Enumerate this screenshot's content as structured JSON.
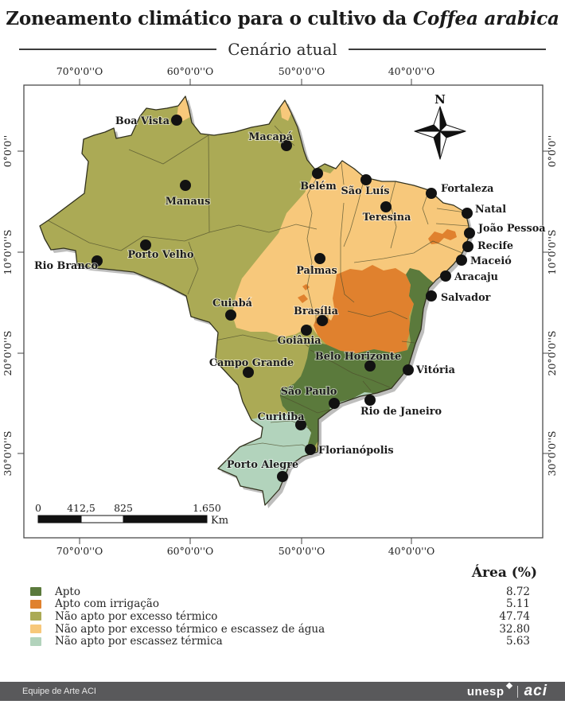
{
  "title": {
    "prefix": "Zoneamento climático para o cultivo da ",
    "species": "Coffea arabica"
  },
  "subtitle": "Cenário atual",
  "map": {
    "compass_n": "N",
    "colors": {
      "apto": "#5b7a3c",
      "apto_irrigacao": "#e0812e",
      "nao_apto_termico": "#abaa55",
      "nao_apto_termico_agua": "#f7c87b",
      "nao_apto_escassez_termica": "#b2d3bc"
    },
    "axis": {
      "top": [
        "70°0'0''O",
        "60°0'0''O",
        "50°0'0''O",
        "40°0'0''O"
      ],
      "bottom": [
        "70°0'0''O",
        "60°0'0''O",
        "50°0'0''O",
        "40°0'0''O"
      ],
      "left": [
        "0°0'0''",
        "10°0'0''S",
        "20°0'0''S",
        "30°0'0''S"
      ],
      "right": [
        "0°0'0''",
        "10°0'0''S",
        "20°0'0''S",
        "30°0'0''S"
      ]
    },
    "scalebar": {
      "ticks": [
        "0",
        "412,5",
        "825",
        "1.650"
      ],
      "unit": "Km"
    },
    "cities": [
      {
        "name": "Boa Vista",
        "dot": [
          222,
          151
        ],
        "label": [
          213,
          156
        ],
        "anchor": "end"
      },
      {
        "name": "Macapá",
        "dot": [
          360,
          183
        ],
        "label": [
          368,
          176
        ],
        "anchor": "end"
      },
      {
        "name": "Manaus",
        "dot": [
          233,
          233
        ],
        "label": [
          236,
          257
        ],
        "anchor": "middle"
      },
      {
        "name": "Belém",
        "dot": [
          399,
          218
        ],
        "label": [
          400,
          238
        ],
        "anchor": "middle"
      },
      {
        "name": "São Luís",
        "dot": [
          460,
          226
        ],
        "label": [
          459,
          244
        ],
        "anchor": "middle"
      },
      {
        "name": "Fortaleza",
        "dot": [
          542,
          243
        ],
        "label": [
          554,
          241
        ],
        "anchor": "start"
      },
      {
        "name": "Teresina",
        "dot": [
          485,
          260
        ],
        "label": [
          486,
          277
        ],
        "anchor": "middle"
      },
      {
        "name": "Natal",
        "dot": [
          587,
          268
        ],
        "label": [
          597,
          267
        ],
        "anchor": "start"
      },
      {
        "name": "João Pessoa",
        "dot": [
          590,
          293
        ],
        "label": [
          601,
          291
        ],
        "anchor": "start"
      },
      {
        "name": "Recife",
        "dot": [
          588,
          310
        ],
        "label": [
          600,
          313
        ],
        "anchor": "start"
      },
      {
        "name": "Maceió",
        "dot": [
          580,
          327
        ],
        "label": [
          591,
          332
        ],
        "anchor": "start"
      },
      {
        "name": "Aracaju",
        "dot": [
          560,
          347
        ],
        "label": [
          571,
          352
        ],
        "anchor": "start"
      },
      {
        "name": "Salvador",
        "dot": [
          542,
          372
        ],
        "label": [
          554,
          378
        ],
        "anchor": "start"
      },
      {
        "name": "Palmas",
        "dot": [
          402,
          325
        ],
        "label": [
          398,
          344
        ],
        "anchor": "middle"
      },
      {
        "name": "Porto Velho",
        "dot": [
          183,
          308
        ],
        "label": [
          202,
          324
        ],
        "anchor": "middle"
      },
      {
        "name": "Rio Branco",
        "dot": [
          122,
          328
        ],
        "label": [
          83,
          338
        ],
        "anchor": "middle"
      },
      {
        "name": "Cuiabá",
        "dot": [
          290,
          396
        ],
        "label": [
          292,
          385
        ],
        "anchor": "middle"
      },
      {
        "name": "Brasília",
        "dot": [
          405,
          403
        ],
        "label": [
          397,
          395
        ],
        "anchor": "middle"
      },
      {
        "name": "Goiânia",
        "dot": [
          385,
          415
        ],
        "label": [
          376,
          432
        ],
        "anchor": "middle"
      },
      {
        "name": "Campo Grande",
        "dot": [
          312,
          468
        ],
        "label": [
          316,
          460
        ],
        "anchor": "middle"
      },
      {
        "name": "Belo Horizonte",
        "dot": [
          465,
          460
        ],
        "label": [
          450,
          452
        ],
        "anchor": "middle"
      },
      {
        "name": "Vitória",
        "dot": [
          513,
          465
        ],
        "label": [
          523,
          469
        ],
        "anchor": "start"
      },
      {
        "name": "São Paulo",
        "dot": [
          420,
          507
        ],
        "label": [
          388,
          496
        ],
        "anchor": "middle"
      },
      {
        "name": "Rio de Janeiro",
        "dot": [
          465,
          503
        ],
        "label": [
          504,
          521
        ],
        "anchor": "middle"
      },
      {
        "name": "Curitiba",
        "dot": [
          378,
          534
        ],
        "label": [
          353,
          528
        ],
        "anchor": "middle"
      },
      {
        "name": "Florianópolis",
        "dot": [
          390,
          565
        ],
        "label": [
          400,
          570
        ],
        "anchor": "start"
      },
      {
        "name": "Porto Alegre",
        "dot": [
          355,
          599
        ],
        "label": [
          330,
          588
        ],
        "anchor": "middle"
      }
    ]
  },
  "legend": {
    "header": "Área (%)",
    "items": [
      {
        "label": "Apto",
        "value": "8.72",
        "color_key": "apto"
      },
      {
        "label": "Apto com irrigação",
        "value": "5.11",
        "color_key": "apto_irrigacao"
      },
      {
        "label": "Não apto por excesso térmico",
        "value": "47.74",
        "color_key": "nao_apto_termico"
      },
      {
        "label": "Não apto por excesso térmico e escassez de água",
        "value": "32.80",
        "color_key": "nao_apto_termico_agua"
      },
      {
        "label": "Não apto por escassez térmica",
        "value": "5.63",
        "color_key": "nao_apto_escassez_termica"
      }
    ]
  },
  "footer": {
    "credit": "Equipe de Arte ACI",
    "unesp": "unesp",
    "aci": "aci"
  }
}
